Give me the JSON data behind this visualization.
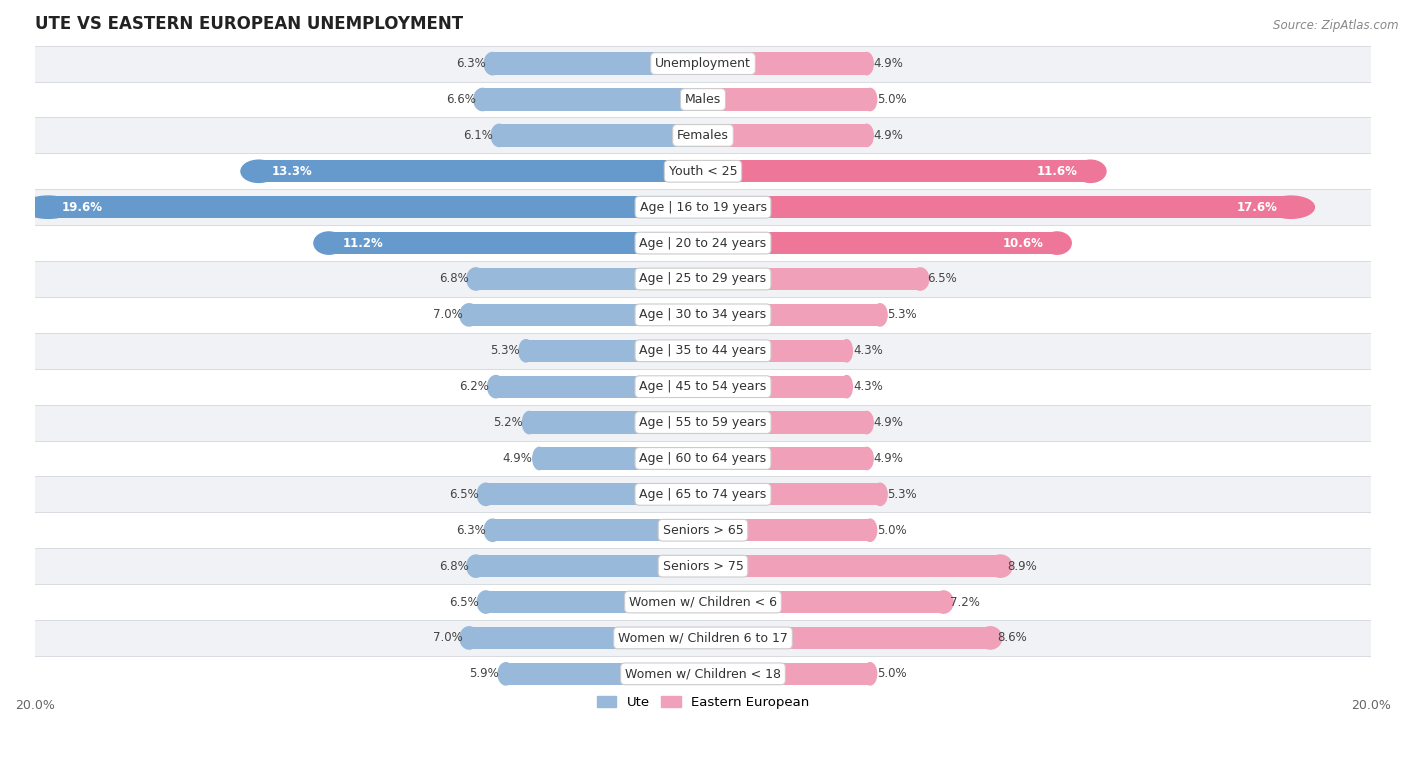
{
  "title": "UTE VS EASTERN EUROPEAN UNEMPLOYMENT",
  "source": "Source: ZipAtlas.com",
  "categories": [
    "Unemployment",
    "Males",
    "Females",
    "Youth < 25",
    "Age | 16 to 19 years",
    "Age | 20 to 24 years",
    "Age | 25 to 29 years",
    "Age | 30 to 34 years",
    "Age | 35 to 44 years",
    "Age | 45 to 54 years",
    "Age | 55 to 59 years",
    "Age | 60 to 64 years",
    "Age | 65 to 74 years",
    "Seniors > 65",
    "Seniors > 75",
    "Women w/ Children < 6",
    "Women w/ Children 6 to 17",
    "Women w/ Children < 18"
  ],
  "ute_values": [
    6.3,
    6.6,
    6.1,
    13.3,
    19.6,
    11.2,
    6.8,
    7.0,
    5.3,
    6.2,
    5.2,
    4.9,
    6.5,
    6.3,
    6.8,
    6.5,
    7.0,
    5.9
  ],
  "ee_values": [
    4.9,
    5.0,
    4.9,
    11.6,
    17.6,
    10.6,
    6.5,
    5.3,
    4.3,
    4.3,
    4.9,
    4.9,
    5.3,
    5.0,
    8.9,
    7.2,
    8.6,
    5.0
  ],
  "ute_color": "#98b9d9",
  "ee_color": "#f0a0b8",
  "ute_highlight_color": "#6699cc",
  "ee_highlight_color": "#ee7799",
  "highlight_indices": [
    3,
    4,
    5
  ],
  "bar_height": 0.62,
  "background_color": "#ffffff",
  "row_odd_color": "#f0f2f5",
  "row_even_color": "#ffffff",
  "separator_color": "#d8dce0",
  "axis_limit": 20.0,
  "legend_ute": "Ute",
  "legend_ee": "Eastern European",
  "label_fontsize": 9.0,
  "value_fontsize": 8.5,
  "title_fontsize": 12,
  "source_fontsize": 8.5
}
